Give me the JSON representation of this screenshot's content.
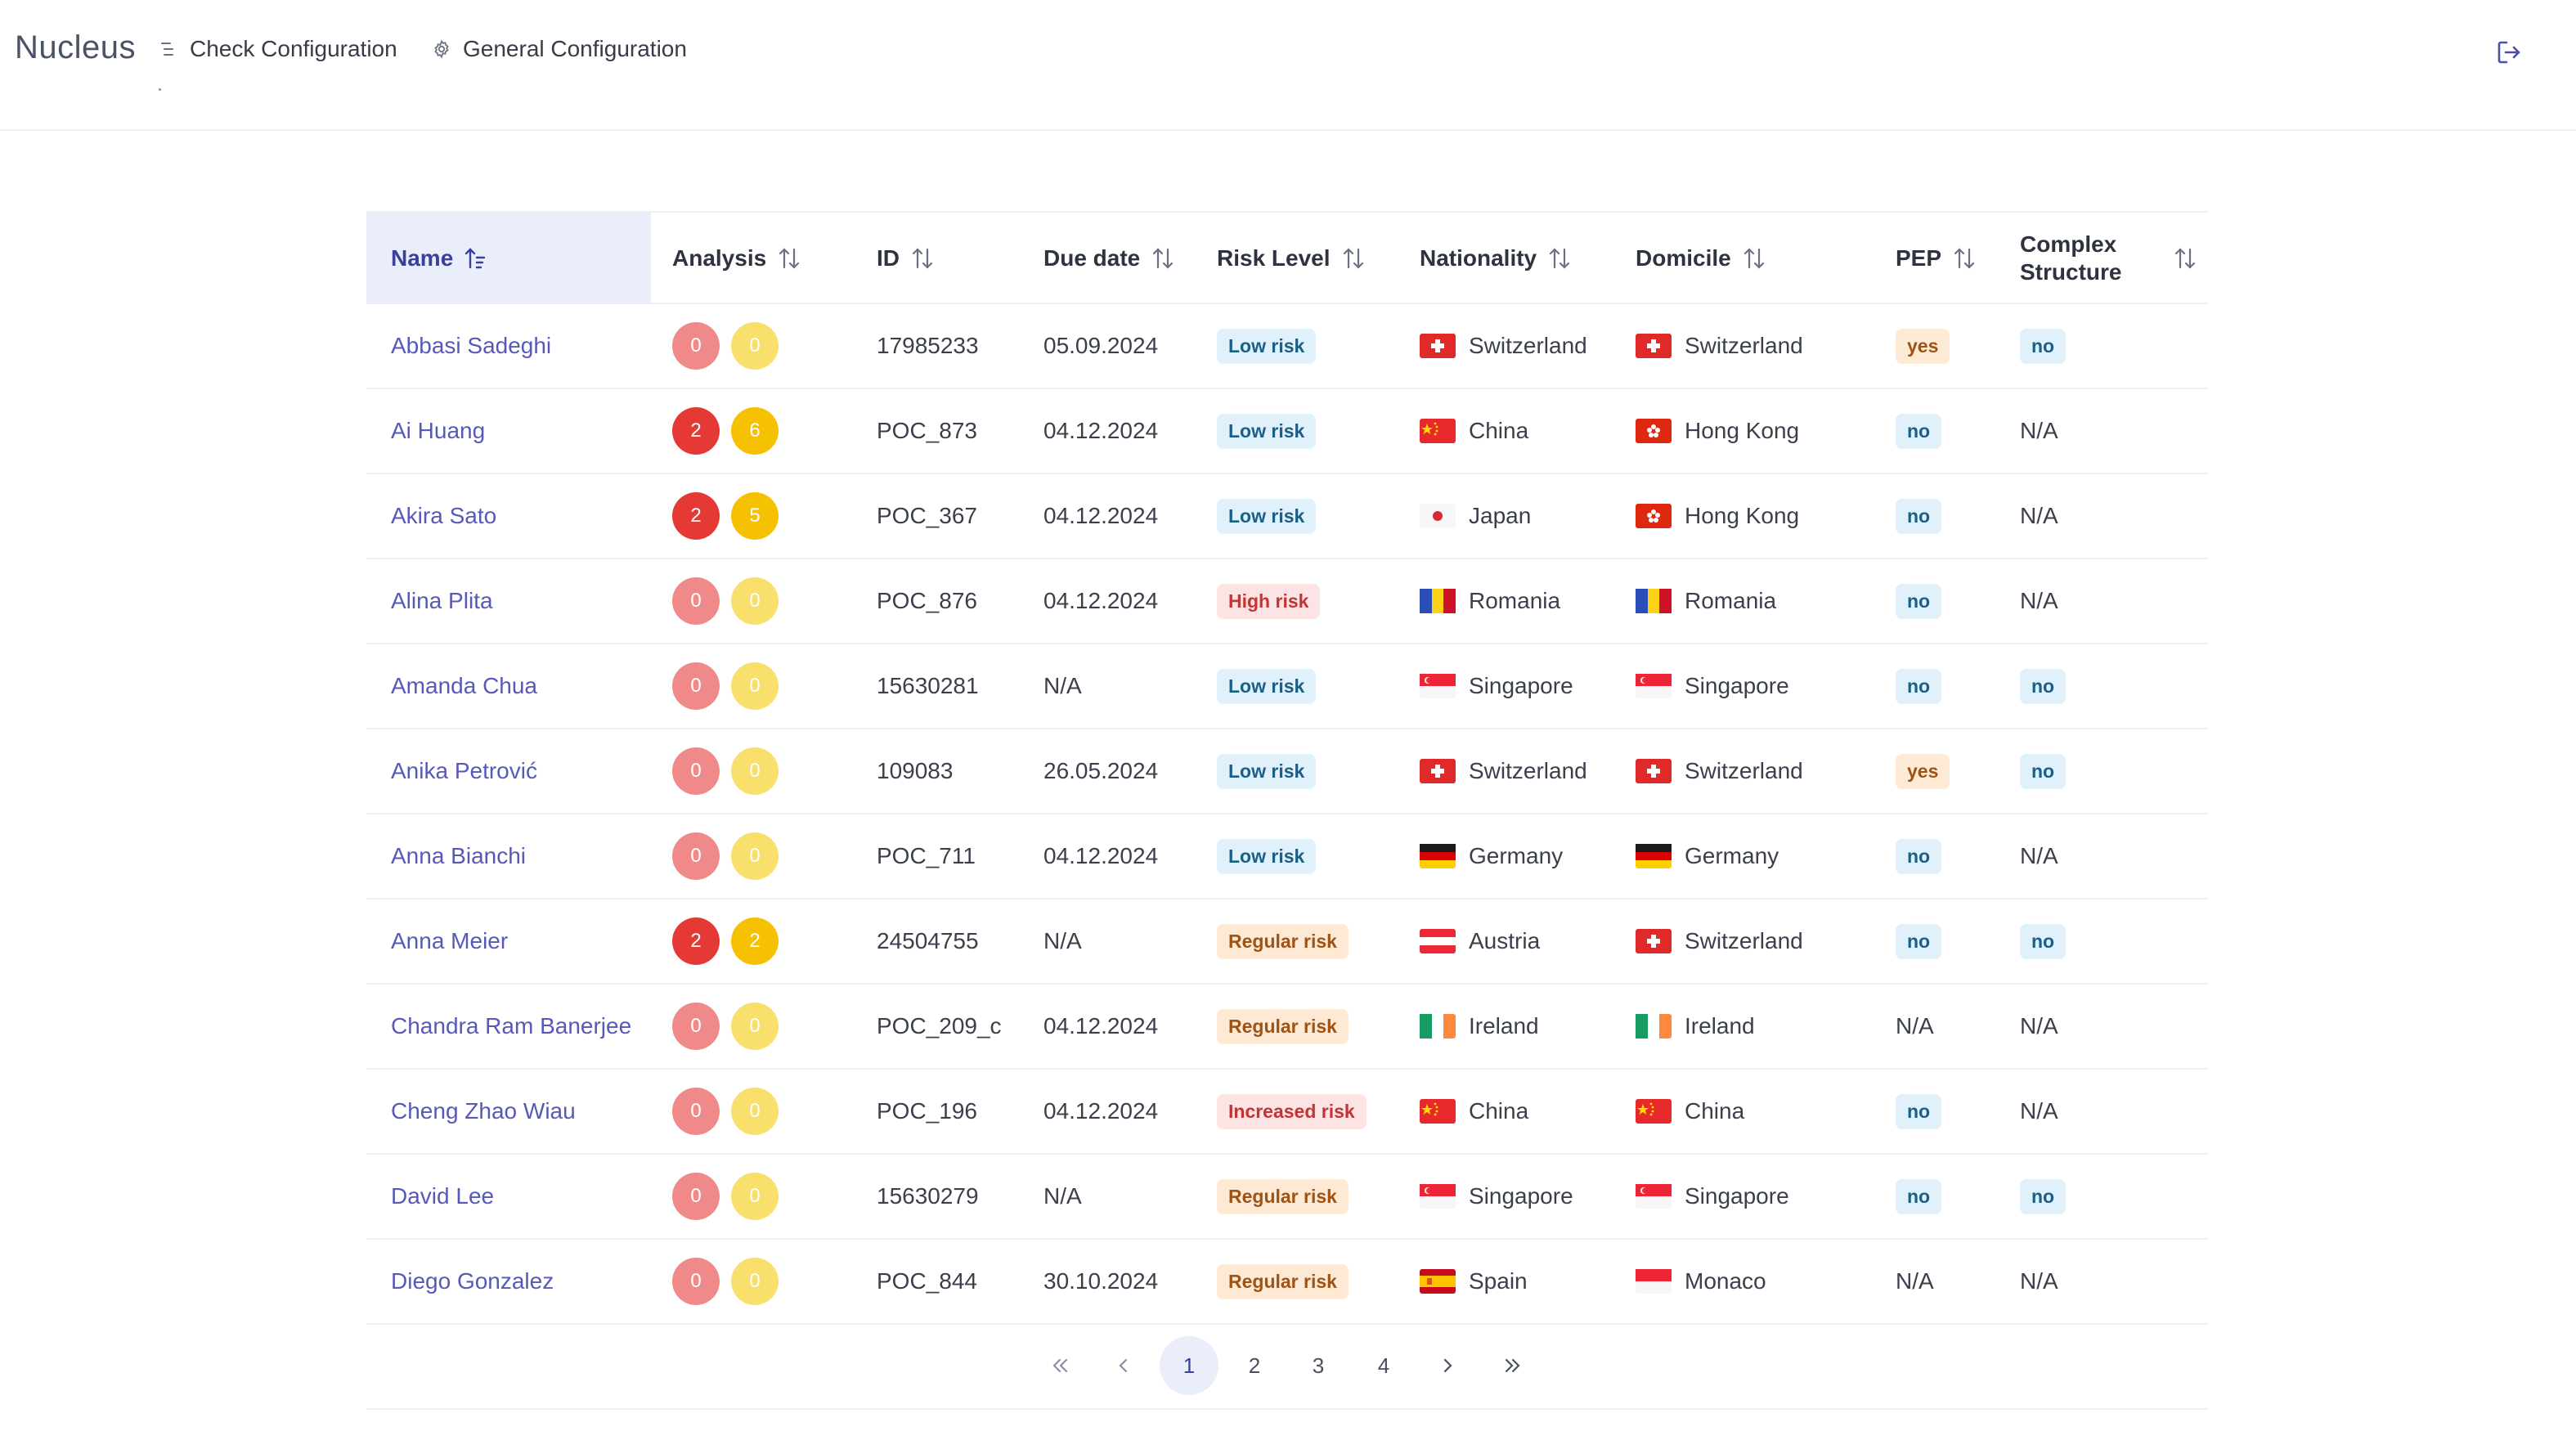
{
  "app": {
    "title": "Nucleus"
  },
  "nav": {
    "check_config": "Check Configuration",
    "general_config": "General Configuration"
  },
  "colors": {
    "accent": "#5759b8",
    "sorted_header_bg": "#eaeefa",
    "analysis_red": "#e53935",
    "analysis_red_faded": "#f08a8a",
    "analysis_yellow": "#f5c100",
    "analysis_yellow_faded": "#f9df6b"
  },
  "table": {
    "headers": {
      "name": "Name",
      "analysis": "Analysis",
      "id": "ID",
      "due_date": "Due date",
      "risk_level": "Risk Level",
      "nationality": "Nationality",
      "domicile": "Domicile",
      "pep": "PEP",
      "complex_structure_1": "Complex",
      "complex_structure_2": "Structure"
    },
    "rows": [
      {
        "name": "Abbasi Sadeghi",
        "analysis_red": "0",
        "analysis_yellow": "0",
        "id": "17985233",
        "due_date": "05.09.2024",
        "risk": "Low risk",
        "risk_type": "low",
        "nationality": "Switzerland",
        "nat_flag": "ch",
        "domicile": "Switzerland",
        "dom_flag": "ch",
        "pep": "yes",
        "complex": "no"
      },
      {
        "name": "Ai Huang",
        "analysis_red": "2",
        "analysis_yellow": "6",
        "id": "POC_873",
        "due_date": "04.12.2024",
        "risk": "Low risk",
        "risk_type": "low",
        "nationality": "China",
        "nat_flag": "cn",
        "domicile": "Hong Kong",
        "dom_flag": "hk",
        "pep": "no",
        "complex": "N/A"
      },
      {
        "name": "Akira Sato",
        "analysis_red": "2",
        "analysis_yellow": "5",
        "id": "POC_367",
        "due_date": "04.12.2024",
        "risk": "Low risk",
        "risk_type": "low",
        "nationality": "Japan",
        "nat_flag": "jp",
        "domicile": "Hong Kong",
        "dom_flag": "hk",
        "pep": "no",
        "complex": "N/A"
      },
      {
        "name": "Alina Plita",
        "analysis_red": "0",
        "analysis_yellow": "0",
        "id": "POC_876",
        "due_date": "04.12.2024",
        "risk": "High risk",
        "risk_type": "high",
        "nationality": "Romania",
        "nat_flag": "ro",
        "domicile": "Romania",
        "dom_flag": "ro",
        "pep": "no",
        "complex": "N/A"
      },
      {
        "name": "Amanda Chua",
        "analysis_red": "0",
        "analysis_yellow": "0",
        "id": "15630281",
        "due_date": "N/A",
        "risk": "Low risk",
        "risk_type": "low",
        "nationality": "Singapore",
        "nat_flag": "sg",
        "domicile": "Singapore",
        "dom_flag": "sg",
        "pep": "no",
        "complex": "no"
      },
      {
        "name": "Anika Petrović",
        "analysis_red": "0",
        "analysis_yellow": "0",
        "id": "109083",
        "due_date": "26.05.2024",
        "risk": "Low risk",
        "risk_type": "low",
        "nationality": "Switzerland",
        "nat_flag": "ch",
        "domicile": "Switzerland",
        "dom_flag": "ch",
        "pep": "yes",
        "complex": "no"
      },
      {
        "name": "Anna Bianchi",
        "analysis_red": "0",
        "analysis_yellow": "0",
        "id": "POC_711",
        "due_date": "04.12.2024",
        "risk": "Low risk",
        "risk_type": "low",
        "nationality": "Germany",
        "nat_flag": "de",
        "domicile": "Germany",
        "dom_flag": "de",
        "pep": "no",
        "complex": "N/A"
      },
      {
        "name": "Anna Meier",
        "analysis_red": "2",
        "analysis_yellow": "2",
        "id": "24504755",
        "due_date": "N/A",
        "risk": "Regular risk",
        "risk_type": "regular",
        "nationality": "Austria",
        "nat_flag": "at",
        "domicile": "Switzerland",
        "dom_flag": "ch",
        "pep": "no",
        "complex": "no"
      },
      {
        "name": "Chandra Ram Banerjee",
        "analysis_red": "0",
        "analysis_yellow": "0",
        "id": "POC_209_c",
        "due_date": "04.12.2024",
        "risk": "Regular risk",
        "risk_type": "regular",
        "nationality": "Ireland",
        "nat_flag": "ie",
        "domicile": "Ireland",
        "dom_flag": "ie",
        "pep": "N/A",
        "complex": "N/A"
      },
      {
        "name": "Cheng Zhao Wiau",
        "analysis_red": "0",
        "analysis_yellow": "0",
        "id": "POC_196",
        "due_date": "04.12.2024",
        "risk": "Increased risk",
        "risk_type": "increased",
        "nationality": "China",
        "nat_flag": "cn",
        "domicile": "China",
        "dom_flag": "cn",
        "pep": "no",
        "complex": "N/A"
      },
      {
        "name": "David Lee",
        "analysis_red": "0",
        "analysis_yellow": "0",
        "id": "15630279",
        "due_date": "N/A",
        "risk": "Regular risk",
        "risk_type": "regular",
        "nationality": "Singapore",
        "nat_flag": "sg",
        "domicile": "Singapore",
        "dom_flag": "sg",
        "pep": "no",
        "complex": "no"
      },
      {
        "name": "Diego Gonzalez",
        "analysis_red": "0",
        "analysis_yellow": "0",
        "id": "POC_844",
        "due_date": "30.10.2024",
        "risk": "Regular risk",
        "risk_type": "regular",
        "nationality": "Spain",
        "nat_flag": "es",
        "domicile": "Monaco",
        "dom_flag": "mc",
        "pep": "N/A",
        "complex": "N/A"
      }
    ]
  },
  "pagination": {
    "pages": [
      "1",
      "2",
      "3",
      "4"
    ],
    "current": "1"
  }
}
